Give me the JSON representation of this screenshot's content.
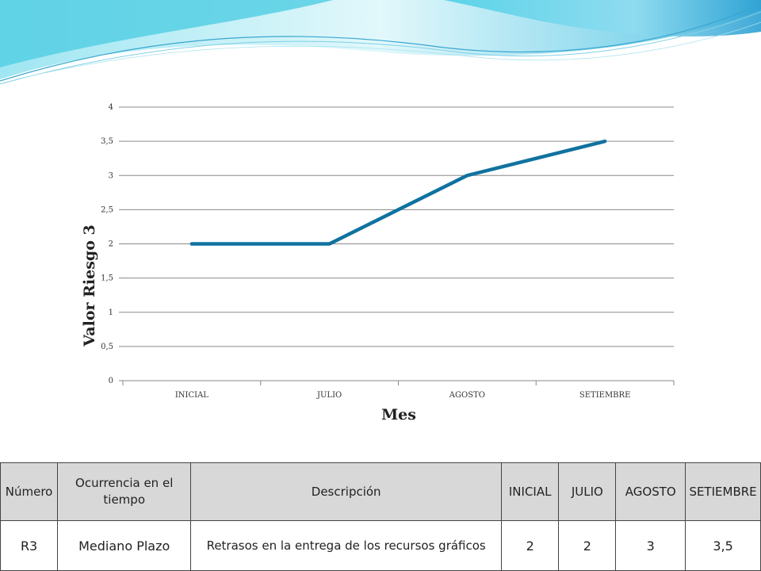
{
  "colors": {
    "line": "#10729f",
    "header_bg": "#d8d8d8",
    "swoosh_light": "#bfeef5",
    "swoosh_mid": "#67d3e8",
    "swoosh_dark": "#2a9fd0"
  },
  "chart_data": {
    "type": "line",
    "categories": [
      "INICIAL",
      "JULIO",
      "AGOSTO",
      "SETIEMBRE"
    ],
    "values": [
      2,
      2,
      3,
      3.5
    ],
    "ylim": [
      0,
      4
    ],
    "yticks": [
      0,
      0.5,
      1,
      1.5,
      2,
      2.5,
      3,
      3.5,
      4
    ],
    "ytick_labels": [
      "0",
      "0,5",
      "1",
      "1,5",
      "2",
      "2,5",
      "3",
      "3,5",
      "4"
    ],
    "xlabel": "Mes",
    "ylabel": "Valor Riesgo 3",
    "grid": true,
    "legend": "none"
  },
  "table": {
    "headers": [
      "Número",
      "Ocurrencia en el tiempo",
      "Descripción",
      "INICIAL",
      "JULIO",
      "AGOSTO",
      "SETIEMBRE"
    ],
    "rows": [
      [
        "R3",
        "Mediano Plazo",
        "Retrasos en la entrega de los recursos gráficos",
        "2",
        "2",
        "3",
        "3,5"
      ]
    ]
  }
}
